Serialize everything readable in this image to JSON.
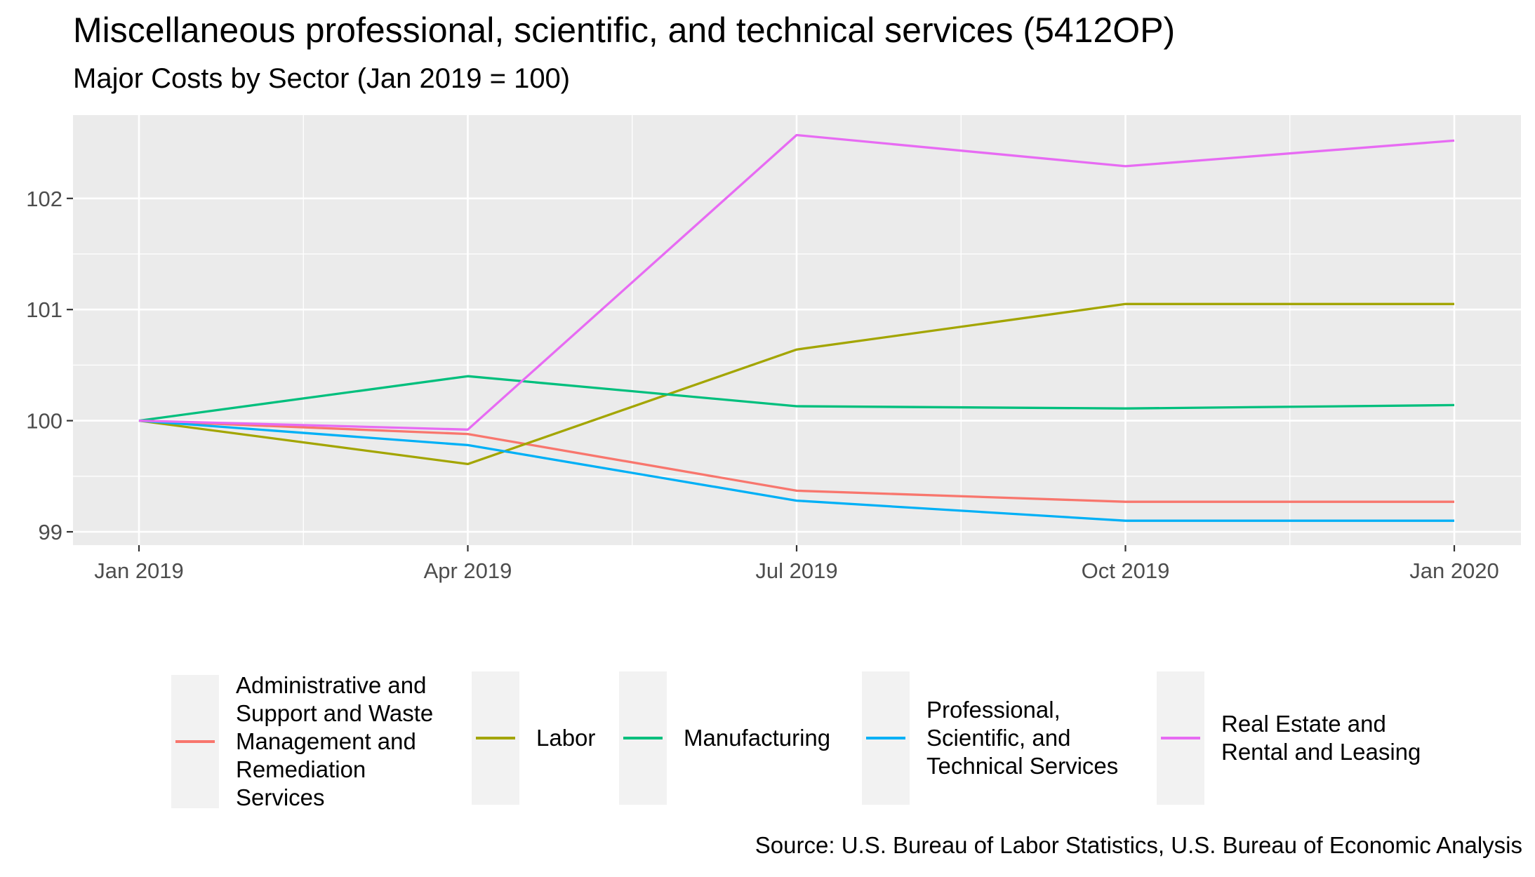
{
  "title": "Miscellaneous professional, scientific, and technical services (5412OP)",
  "subtitle": "Major Costs by Sector (Jan 2019 = 100)",
  "caption": "Source: U.S. Bureau of Labor Statistics, U.S. Bureau of Economic Analysis",
  "chart_data": {
    "type": "line",
    "title": "Miscellaneous professional, scientific, and technical services (5412OP)",
    "subtitle": "Major Costs by Sector (Jan 2019 = 100)",
    "xlabel": "",
    "ylabel": "",
    "x": [
      "Jan 2019",
      "Apr 2019",
      "Jul 2019",
      "Oct 2019",
      "Jan 2020"
    ],
    "x_ticks": [
      "Jan 2019",
      "Apr 2019",
      "Jul 2019",
      "Oct 2019",
      "Jan 2020"
    ],
    "y_ticks": [
      99,
      100,
      101,
      102
    ],
    "ylim": [
      98.88,
      102.75
    ],
    "grid": true,
    "legend_position": "bottom",
    "series": [
      {
        "name": "Administrative and Support and Waste Management and Remediation Services",
        "legend_label": "Administrative and\nSupport and Waste\nManagement and\nRemediation\nServices",
        "color": "#F8766D",
        "values": [
          100,
          99.88,
          99.37,
          99.27,
          99.27
        ]
      },
      {
        "name": "Labor",
        "legend_label": "Labor",
        "color": "#A3A500",
        "values": [
          100,
          99.61,
          100.64,
          101.05,
          101.05
        ]
      },
      {
        "name": "Manufacturing",
        "legend_label": "Manufacturing",
        "color": "#00BF7D",
        "values": [
          100,
          100.4,
          100.13,
          100.11,
          100.14
        ]
      },
      {
        "name": "Professional, Scientific, and Technical Services",
        "legend_label": "Professional,\nScientific, and\nTechnical Services",
        "color": "#00B0F6",
        "values": [
          100,
          99.78,
          99.28,
          99.1,
          99.1
        ]
      },
      {
        "name": "Real Estate and Rental and Leasing",
        "legend_label": "Real Estate and\nRental and Leasing",
        "color": "#E76BF3",
        "values": [
          100,
          99.92,
          102.57,
          102.29,
          102.52
        ]
      }
    ]
  }
}
